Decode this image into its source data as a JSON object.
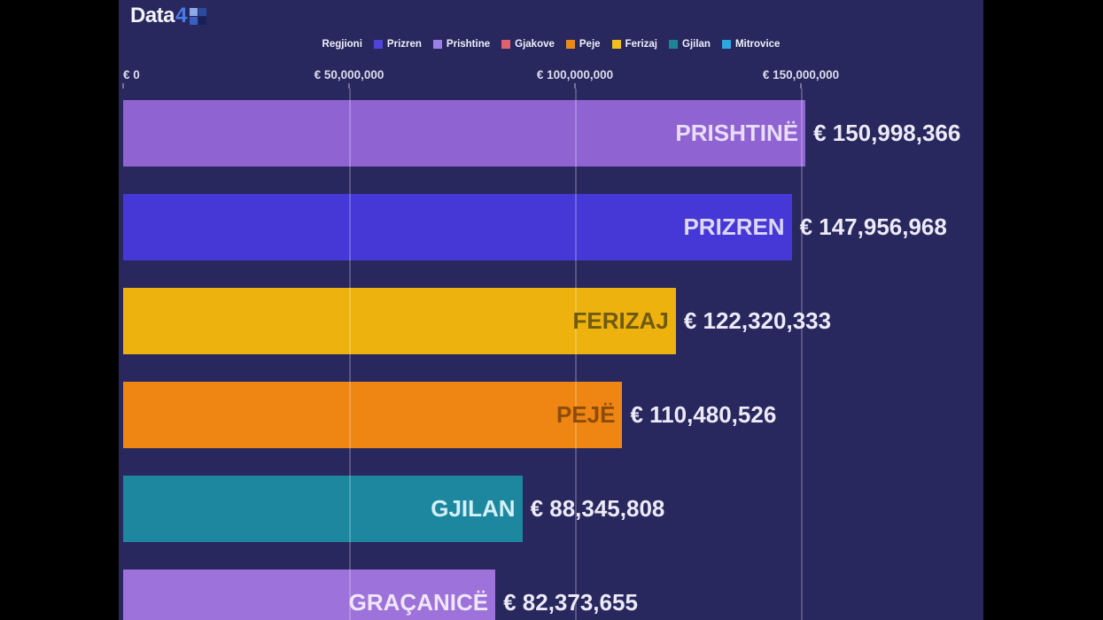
{
  "logo": {
    "text": "Data",
    "accent": "4"
  },
  "legend": {
    "title": "Regjioni",
    "items": [
      {
        "label": "Prizren",
        "color": "#4f43d8"
      },
      {
        "label": "Prishtine",
        "color": "#9b80e8"
      },
      {
        "label": "Gjakove",
        "color": "#e0606e"
      },
      {
        "label": "Peje",
        "color": "#e98a1d"
      },
      {
        "label": "Ferizaj",
        "color": "#f0c11a"
      },
      {
        "label": "Gjilan",
        "color": "#1d8596"
      },
      {
        "label": "Mitrovice",
        "color": "#2ea6e0"
      }
    ]
  },
  "chart_data": {
    "type": "bar",
    "orientation": "horizontal",
    "currency": "EUR",
    "legend_position": "top",
    "grid": "vertical",
    "xlim": [
      0,
      190000000
    ],
    "x_ticks": [
      {
        "value": 0,
        "label": "€ 0"
      },
      {
        "value": 50000000,
        "label": "€ 50,000,000"
      },
      {
        "value": 100000000,
        "label": "€ 100,000,000"
      },
      {
        "value": 150000000,
        "label": "€ 150,000,000"
      }
    ],
    "bars": [
      {
        "name": "PRISHTINË",
        "value": 150998366,
        "value_label": "€ 150,998,366",
        "region": "Prishtine",
        "color": "#8f64d2",
        "name_color": "#eadcfb"
      },
      {
        "name": "PRIZREN",
        "value": 147956968,
        "value_label": "€ 147,956,968",
        "region": "Prizren",
        "color": "#4638d6",
        "name_color": "#dcd8fb"
      },
      {
        "name": "FERIZAJ",
        "value": 122320333,
        "value_label": "€ 122,320,333",
        "region": "Ferizaj",
        "color": "#edb20e",
        "name_color": "#6e5a10"
      },
      {
        "name": "PEJË",
        "value": 110480526,
        "value_label": "€ 110,480,526",
        "region": "Peje",
        "color": "#ef8512",
        "name_color": "#8d4d08"
      },
      {
        "name": "GJILAN",
        "value": 88345808,
        "value_label": "€ 88,345,808",
        "region": "Gjilan",
        "color": "#1d87a0",
        "name_color": "#d3f0f5"
      },
      {
        "name": "GRAÇANICË",
        "value": 82373655,
        "value_label": "€ 82,373,655",
        "region": "Prishtine",
        "color": "#9d72da",
        "name_color": "#f0e6fc"
      }
    ]
  },
  "colors": {
    "letterbox": "#000000",
    "panel_background": "#28275e",
    "value_text": "#eceaf6",
    "axis_text": "#dcdcec"
  }
}
